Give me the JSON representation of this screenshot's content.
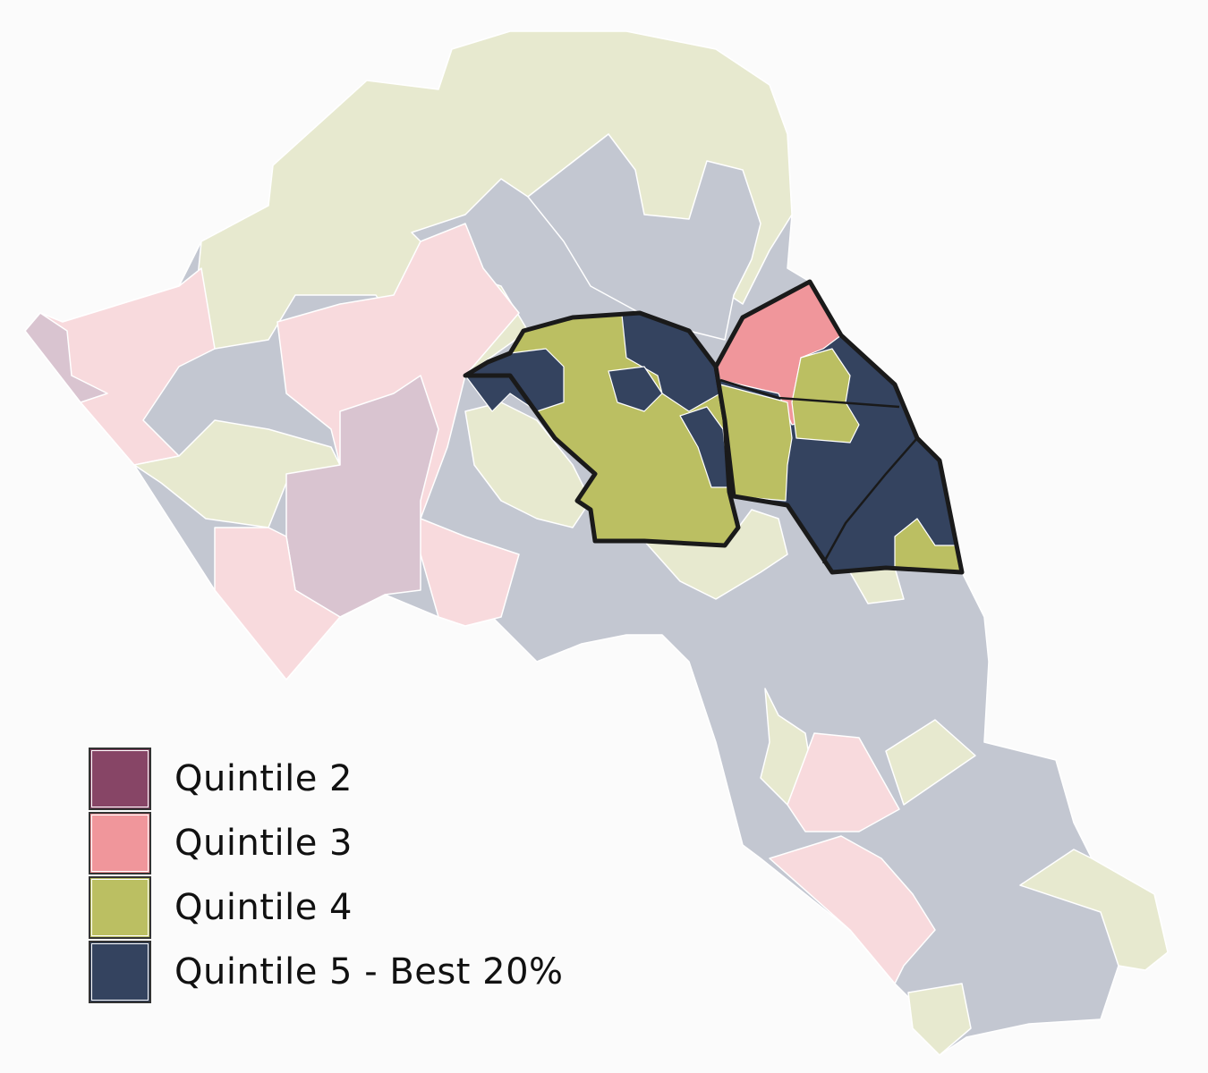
{
  "legend": {
    "items": [
      {
        "label": "Quintile 2",
        "color": "#874566"
      },
      {
        "label": "Quintile 3",
        "color": "#f0969b"
      },
      {
        "label": "Quintile 4",
        "color": "#bbbf62"
      },
      {
        "label": "Quintile 5 - Best 20%",
        "color": "#34435f"
      }
    ]
  },
  "map": {
    "faded_colors": {
      "quintile_2": "#d9c4d0",
      "quintile_3": "#f8dadd",
      "quintile_4": "#e7e9cf",
      "quintile_5": "#c3c7d1"
    },
    "highlight_outline_color": "#1a1a1a"
  }
}
